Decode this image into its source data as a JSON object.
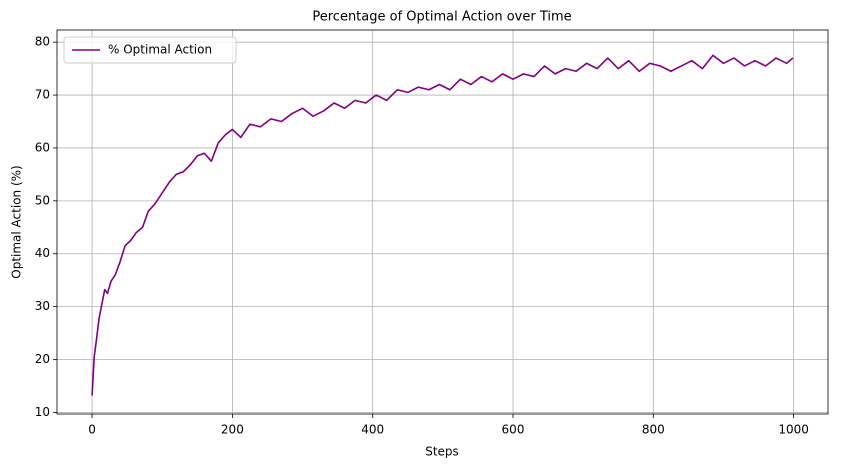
{
  "chart_data": {
    "type": "line",
    "title": "Percentage of Optimal Action over Time",
    "xlabel": "Steps",
    "ylabel": "Optimal Action (%)",
    "x": [
      0,
      3,
      6,
      10,
      14,
      18,
      22,
      27,
      33,
      40,
      47,
      55,
      63,
      72,
      80,
      90,
      100,
      110,
      120,
      130,
      140,
      150,
      160,
      170,
      180,
      190,
      200,
      212,
      225,
      240,
      255,
      270,
      285,
      300,
      315,
      330,
      345,
      360,
      375,
      390,
      405,
      420,
      435,
      450,
      465,
      480,
      495,
      510,
      525,
      540,
      555,
      570,
      585,
      600,
      615,
      630,
      645,
      660,
      675,
      690,
      705,
      720,
      735,
      750,
      765,
      780,
      795,
      810,
      825,
      840,
      855,
      870,
      885,
      900,
      915,
      930,
      945,
      960,
      975,
      990,
      999
    ],
    "series": [
      {
        "name": "% Optimal Action",
        "color": "#800080",
        "values": [
          13.2,
          20.5,
          23.5,
          27.8,
          30.5,
          33.2,
          32.5,
          34.8,
          36.0,
          38.5,
          41.5,
          42.5,
          44.0,
          45.0,
          48.0,
          49.5,
          51.5,
          53.5,
          55.0,
          55.5,
          56.8,
          58.5,
          59.0,
          57.5,
          61.0,
          62.5,
          63.5,
          62.0,
          64.5,
          64.0,
          65.5,
          65.0,
          66.5,
          67.5,
          66.0,
          67.0,
          68.5,
          67.5,
          69.0,
          68.5,
          70.0,
          69.0,
          71.0,
          70.5,
          71.5,
          71.0,
          72.0,
          71.0,
          73.0,
          72.0,
          73.5,
          72.5,
          74.0,
          73.0,
          74.0,
          73.5,
          75.5,
          74.0,
          75.0,
          74.5,
          76.0,
          75.0,
          77.0,
          75.0,
          76.5,
          74.5,
          76.0,
          75.5,
          74.5,
          75.5,
          76.5,
          75.0,
          77.5,
          76.0,
          77.0,
          75.5,
          76.5,
          75.5,
          77.0,
          76.0,
          77.0
        ]
      }
    ],
    "xlim": [
      -50,
      1049
    ],
    "ylim": [
      9.7,
      82.3
    ],
    "xticks": [
      0,
      200,
      400,
      600,
      800,
      1000
    ],
    "yticks": [
      10,
      20,
      30,
      40,
      50,
      60,
      70,
      80
    ],
    "grid": true,
    "legend": "upper left"
  }
}
